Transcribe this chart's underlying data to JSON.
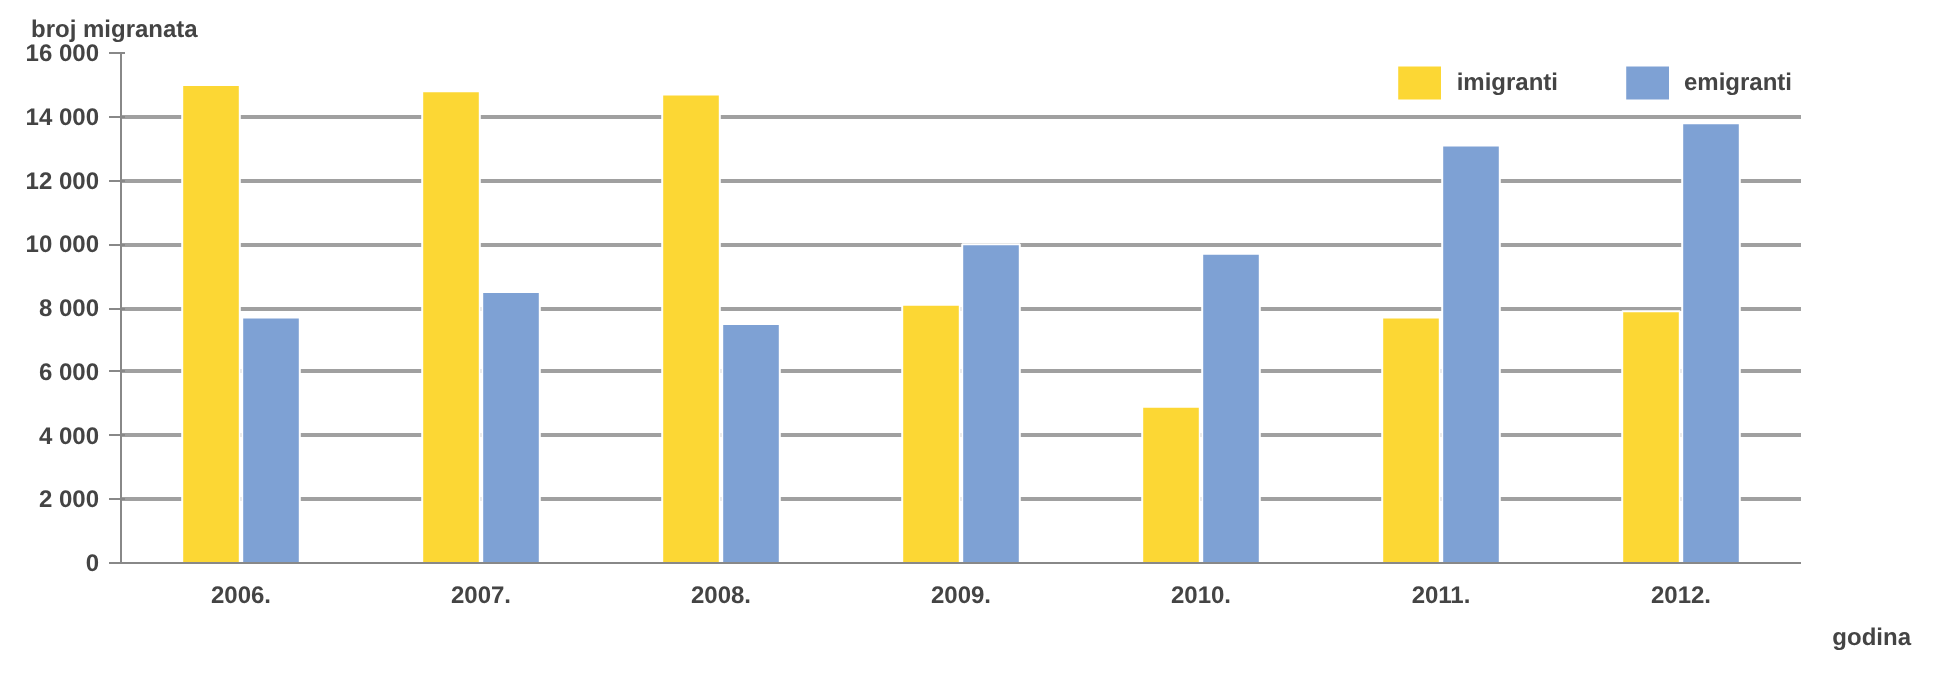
{
  "chart_data": {
    "type": "bar",
    "ylabel": "broj migranata",
    "xlabel": "godina",
    "categories": [
      "2006.",
      "2007.",
      "2008.",
      "2009.",
      "2010.",
      "2011.",
      "2012."
    ],
    "series": [
      {
        "name": "imigranti",
        "color": "#fcd734",
        "values": [
          15000,
          14800,
          14700,
          8100,
          4900,
          7700,
          7900
        ]
      },
      {
        "name": "emigranti",
        "color": "#7ea1d4",
        "values": [
          7700,
          8500,
          7500,
          10000,
          9700,
          13100,
          13800
        ]
      }
    ],
    "ylim": [
      0,
      16000
    ],
    "yticks": [
      0,
      {
        "value": 2000,
        "label": "2 000"
      },
      {
        "value": 4000,
        "label": "4 000"
      },
      {
        "value": 6000,
        "label": "6 000"
      },
      {
        "value": 8000,
        "label": "8 000"
      },
      {
        "value": 10000,
        "label": "10 000"
      },
      {
        "value": 12000,
        "label": "12 000"
      },
      {
        "value": 14000,
        "label": "14 000"
      },
      {
        "value": 16000,
        "label": "16 000"
      }
    ],
    "grid": "y",
    "legend": "top right"
  }
}
